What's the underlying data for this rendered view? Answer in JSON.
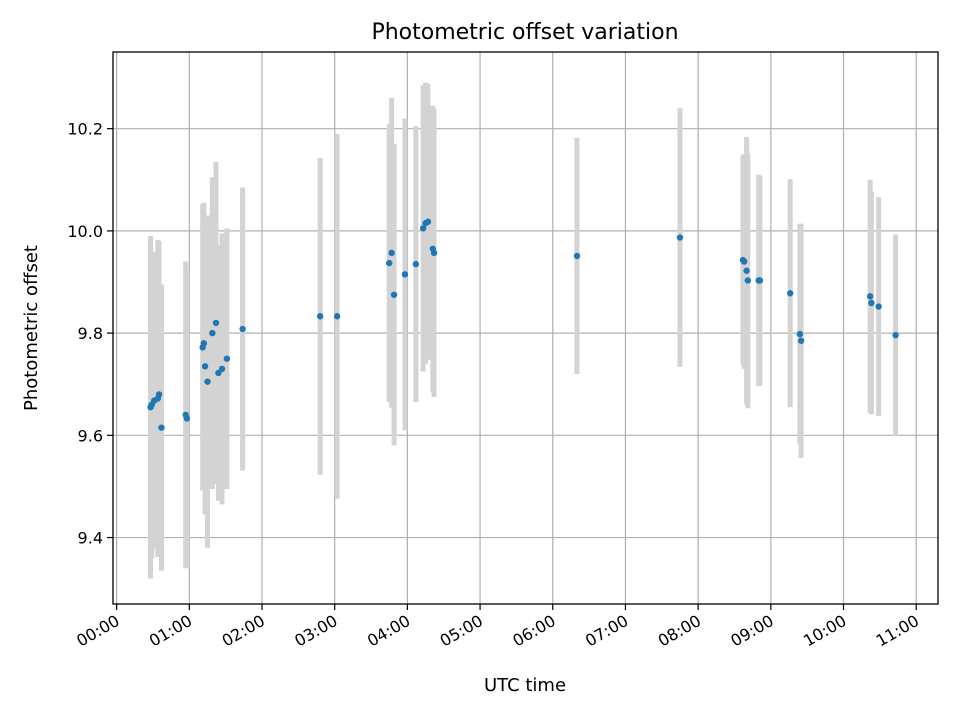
{
  "chart_data": {
    "type": "scatter",
    "title": "Photometric offset variation",
    "xlabel": "UTC time",
    "ylabel": "Photometric offset",
    "x_unit": "UTC time (HH:MM)",
    "xlim": [
      "23:57",
      "11:18"
    ],
    "ylim": [
      9.27,
      10.35
    ],
    "xticks": [
      "00:00",
      "01:00",
      "02:00",
      "03:00",
      "04:00",
      "05:00",
      "06:00",
      "07:00",
      "08:00",
      "09:00",
      "10:00",
      "11:00"
    ],
    "yticks": [
      9.4,
      9.6,
      9.8,
      10.0,
      10.2
    ],
    "ytick_labels": [
      "9.4",
      "9.6",
      "9.8",
      "10.0",
      "10.2"
    ],
    "grid": true,
    "colors": {
      "marker": "#1f77b4",
      "errorbar": "#d3d3d3"
    },
    "series": [
      {
        "points": [
          {
            "x": "00:28",
            "y": 9.655,
            "err": 0.335
          },
          {
            "x": "00:29",
            "y": 9.66,
            "err": 0.3
          },
          {
            "x": "00:31",
            "y": 9.668,
            "err": 0.29
          },
          {
            "x": "00:34",
            "y": 9.672,
            "err": 0.31
          },
          {
            "x": "00:35",
            "y": 9.68,
            "err": 0.3
          },
          {
            "x": "00:37",
            "y": 9.615,
            "err": 0.28
          },
          {
            "x": "00:57",
            "y": 9.64,
            "err": 0.3
          },
          {
            "x": "00:58",
            "y": 9.633,
            "err": 0.29
          },
          {
            "x": "01:11",
            "y": 9.772,
            "err": 0.28
          },
          {
            "x": "01:12",
            "y": 9.78,
            "err": 0.275
          },
          {
            "x": "01:13",
            "y": 9.735,
            "err": 0.29
          },
          {
            "x": "01:15",
            "y": 9.705,
            "err": 0.325
          },
          {
            "x": "01:19",
            "y": 9.8,
            "err": 0.305
          },
          {
            "x": "01:22",
            "y": 9.82,
            "err": 0.315
          },
          {
            "x": "01:24",
            "y": 9.722,
            "err": 0.25
          },
          {
            "x": "01:27",
            "y": 9.73,
            "err": 0.265
          },
          {
            "x": "01:31",
            "y": 9.75,
            "err": 0.255
          },
          {
            "x": "01:44",
            "y": 9.808,
            "err": 0.277
          },
          {
            "x": "02:48",
            "y": 9.833,
            "err": 0.31
          },
          {
            "x": "03:02",
            "y": 9.833,
            "err": 0.357
          },
          {
            "x": "03:45",
            "y": 9.937,
            "err": 0.272
          },
          {
            "x": "03:47",
            "y": 9.957,
            "err": 0.303
          },
          {
            "x": "03:49",
            "y": 9.875,
            "err": 0.295
          },
          {
            "x": "03:58",
            "y": 9.915,
            "err": 0.305
          },
          {
            "x": "04:07",
            "y": 9.935,
            "err": 0.27
          },
          {
            "x": "04:13",
            "y": 10.005,
            "err": 0.28
          },
          {
            "x": "04:15",
            "y": 10.015,
            "err": 0.275
          },
          {
            "x": "04:17",
            "y": 10.018,
            "err": 0.27
          },
          {
            "x": "04:21",
            "y": 9.965,
            "err": 0.28
          },
          {
            "x": "04:22",
            "y": 9.957,
            "err": 0.282
          },
          {
            "x": "06:20",
            "y": 9.951,
            "err": 0.231
          },
          {
            "x": "07:45",
            "y": 9.987,
            "err": 0.253
          },
          {
            "x": "08:37",
            "y": 9.943,
            "err": 0.205
          },
          {
            "x": "08:38",
            "y": 9.94,
            "err": 0.21
          },
          {
            "x": "08:40",
            "y": 9.922,
            "err": 0.262
          },
          {
            "x": "08:41",
            "y": 9.903,
            "err": 0.25
          },
          {
            "x": "08:50",
            "y": 9.903,
            "err": 0.207
          },
          {
            "x": "08:51",
            "y": 9.903,
            "err": 0.205
          },
          {
            "x": "09:16",
            "y": 9.878,
            "err": 0.223
          },
          {
            "x": "09:24",
            "y": 9.798,
            "err": 0.216
          },
          {
            "x": "09:25",
            "y": 9.785,
            "err": 0.229
          },
          {
            "x": "10:22",
            "y": 9.872,
            "err": 0.228
          },
          {
            "x": "10:23",
            "y": 9.859,
            "err": 0.218
          },
          {
            "x": "10:29",
            "y": 9.852,
            "err": 0.214
          },
          {
            "x": "10:43",
            "y": 9.796,
            "err": 0.197
          }
        ]
      }
    ]
  }
}
